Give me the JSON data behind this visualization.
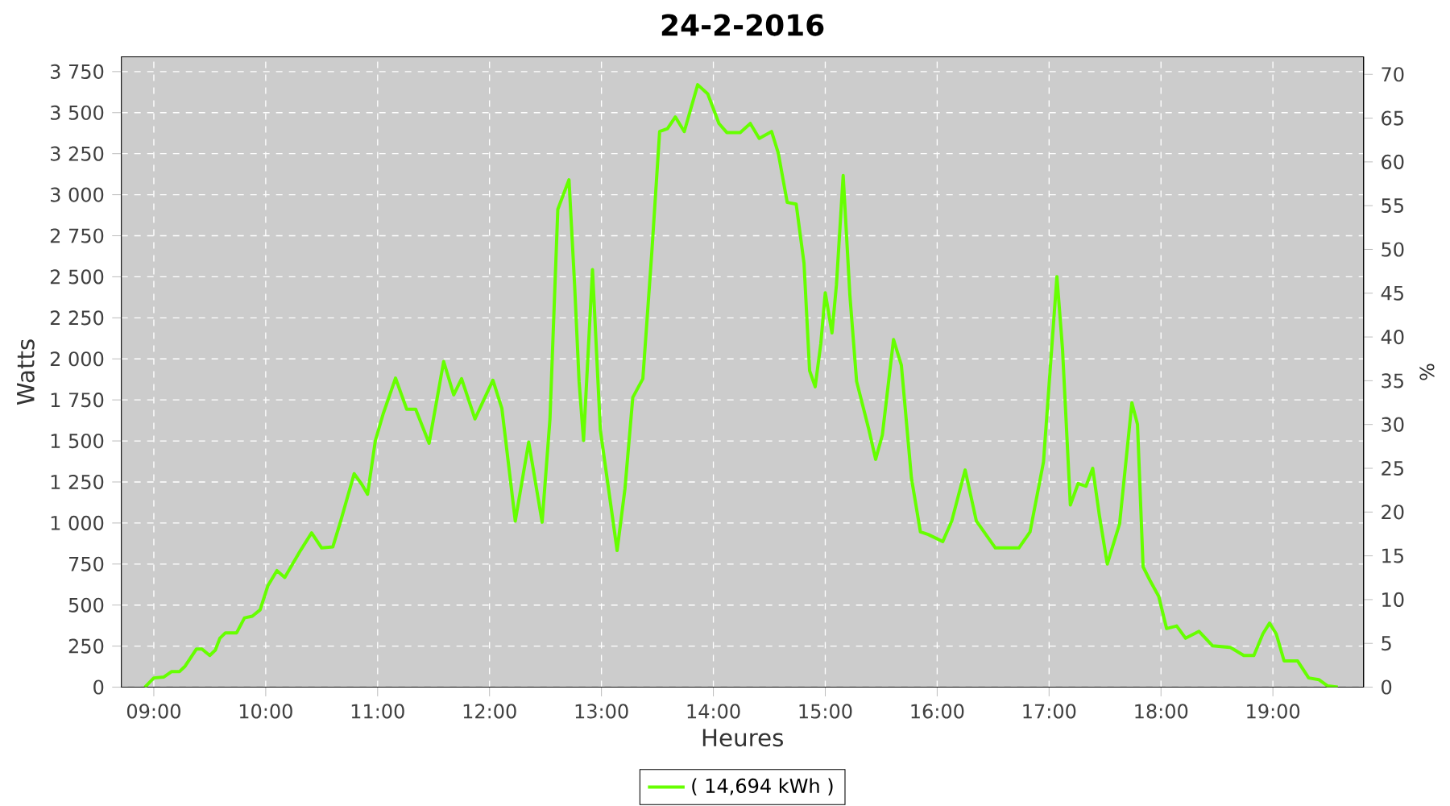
{
  "chart_data": {
    "type": "line",
    "title": "24-2-2016",
    "xlabel": "Heures",
    "ylabel": "Watts",
    "y2label": "%",
    "xlim": [
      8.71,
      19.81
    ],
    "ylim": [
      0,
      3840
    ],
    "y2lim": [
      0,
      72
    ],
    "xticks": [
      {
        "value": 9,
        "label": "09:00"
      },
      {
        "value": 10,
        "label": "10:00"
      },
      {
        "value": 11,
        "label": "11:00"
      },
      {
        "value": 12,
        "label": "12:00"
      },
      {
        "value": 13,
        "label": "13:00"
      },
      {
        "value": 14,
        "label": "14:00"
      },
      {
        "value": 15,
        "label": "15:00"
      },
      {
        "value": 16,
        "label": "16:00"
      },
      {
        "value": 17,
        "label": "17:00"
      },
      {
        "value": 18,
        "label": "18:00"
      },
      {
        "value": 19,
        "label": "19:00"
      }
    ],
    "yticks": [
      0,
      250,
      500,
      750,
      {
        "value": 1000,
        "label": "1 000"
      },
      {
        "value": 1250,
        "label": "1 250"
      },
      {
        "value": 1500,
        "label": "1 500"
      },
      {
        "value": 1750,
        "label": "1 750"
      },
      {
        "value": 2000,
        "label": "2 000"
      },
      {
        "value": 2250,
        "label": "2 250"
      },
      {
        "value": 2500,
        "label": "2 500"
      },
      {
        "value": 2750,
        "label": "2 750"
      },
      {
        "value": 3000,
        "label": "3 000"
      },
      {
        "value": 3250,
        "label": "3 250"
      },
      {
        "value": 3500,
        "label": "3 500"
      },
      {
        "value": 3750,
        "label": "3 750"
      }
    ],
    "y2ticks": [
      0,
      5,
      10,
      15,
      20,
      25,
      30,
      35,
      40,
      45,
      50,
      55,
      60,
      65,
      70
    ],
    "grid": true,
    "legend": "bottom",
    "marker": "none",
    "line_style": "solid",
    "series": [
      {
        "name": "( 14,694 kWh )",
        "color": "#66ff00",
        "x": [
          8.92,
          9.0,
          9.09,
          9.16,
          9.23,
          9.28,
          9.38,
          9.43,
          9.5,
          9.55,
          9.59,
          9.64,
          9.74,
          9.81,
          9.88,
          9.95,
          10.02,
          10.1,
          10.17,
          10.24,
          10.31,
          10.41,
          10.5,
          10.6,
          10.67,
          10.79,
          10.86,
          10.91,
          10.98,
          11.05,
          11.16,
          11.26,
          11.34,
          11.46,
          11.59,
          11.68,
          11.75,
          11.87,
          12.03,
          12.11,
          12.23,
          12.35,
          12.47,
          12.54,
          12.61,
          12.71,
          12.76,
          12.8,
          12.84,
          12.92,
          12.99,
          13.14,
          13.21,
          13.28,
          13.37,
          13.45,
          13.52,
          13.59,
          13.66,
          13.74,
          13.86,
          13.95,
          14.05,
          14.12,
          14.24,
          14.33,
          14.41,
          14.52,
          14.58,
          14.66,
          14.74,
          14.81,
          14.86,
          14.91,
          14.96,
          15.0,
          15.06,
          15.1,
          15.16,
          15.22,
          15.28,
          15.39,
          15.45,
          15.51,
          15.61,
          15.68,
          15.77,
          15.85,
          15.92,
          16.05,
          16.13,
          16.25,
          16.35,
          16.52,
          16.73,
          16.83,
          16.95,
          17.07,
          17.12,
          17.19,
          17.26,
          17.33,
          17.39,
          17.45,
          17.52,
          17.63,
          17.74,
          17.79,
          17.84,
          17.9,
          17.98,
          18.05,
          18.14,
          18.22,
          18.34,
          18.46,
          18.62,
          18.74,
          18.83,
          18.91,
          18.97,
          19.03,
          19.1,
          19.22,
          19.32,
          19.41,
          19.49,
          19.58
        ],
        "values": [
          0,
          56,
          62,
          95,
          95,
          128,
          232,
          232,
          193,
          226,
          298,
          331,
          331,
          422,
          432,
          471,
          619,
          710,
          668,
          750,
          832,
          940,
          848,
          855,
          1012,
          1300,
          1234,
          1175,
          1503,
          1666,
          1883,
          1693,
          1693,
          1486,
          1984,
          1781,
          1879,
          1634,
          1870,
          1699,
          1012,
          1493,
          1005,
          1634,
          2911,
          3091,
          2452,
          1863,
          1503,
          2544,
          1568,
          832,
          1208,
          1765,
          1879,
          2649,
          3385,
          3402,
          3474,
          3385,
          3670,
          3614,
          3434,
          3379,
          3379,
          3434,
          3343,
          3385,
          3254,
          2953,
          2943,
          2583,
          1928,
          1830,
          2092,
          2403,
          2158,
          2452,
          3117,
          2387,
          1863,
          1568,
          1388,
          1536,
          2118,
          1961,
          1274,
          946,
          930,
          887,
          1012,
          1323,
          1012,
          848,
          848,
          946,
          1372,
          2501,
          2059,
          1110,
          1241,
          1224,
          1333,
          1044,
          750,
          995,
          1732,
          1601,
          733,
          652,
          553,
          357,
          373,
          298,
          340,
          252,
          242,
          193,
          193,
          324,
          390,
          324,
          160,
          160,
          56,
          46,
          7,
          0
        ]
      }
    ]
  }
}
